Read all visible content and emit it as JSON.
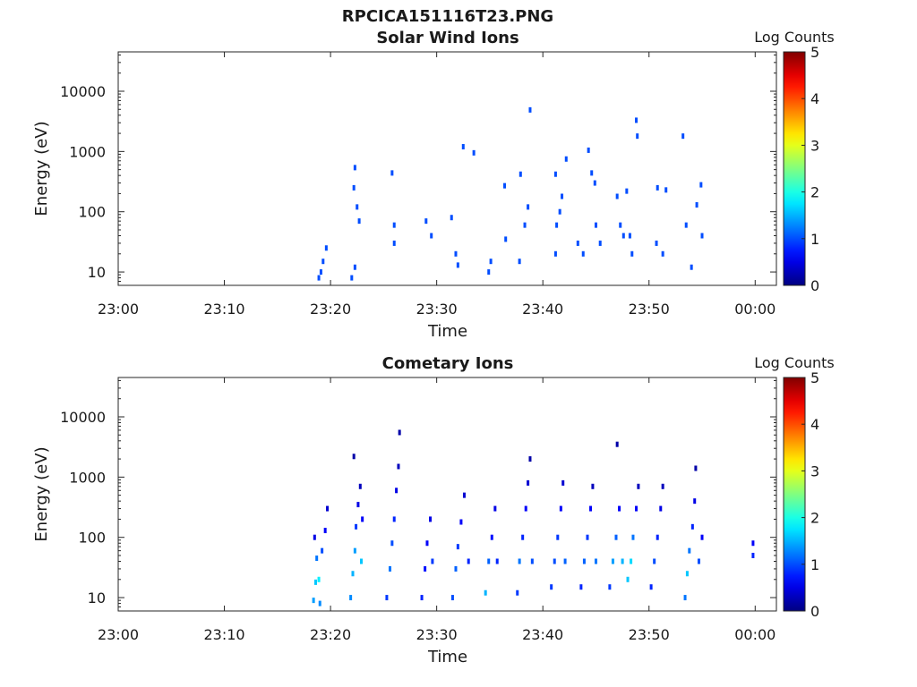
{
  "figure_title": "RPCICA151116T23.PNG",
  "chart_data": [
    {
      "type": "heatmap",
      "title": "Solar Wind Ions",
      "xlabel": "Time",
      "ylabel": "Energy (eV)",
      "x_range": [
        "23:00",
        "00:02"
      ],
      "x_ticks": [
        "23:00",
        "23:10",
        "23:20",
        "23:30",
        "23:40",
        "23:50",
        "00:00"
      ],
      "y_scale": "log",
      "y_range": [
        6,
        45000
      ],
      "y_ticks": [
        "10",
        "100",
        "1000",
        "10000"
      ],
      "colorbar": {
        "label": "Log Counts",
        "min": 0,
        "max": 5,
        "ticks": [
          "0",
          "1",
          "2",
          "3",
          "4",
          "5"
        ],
        "colormap": "jet"
      },
      "grid": false,
      "cells": [
        [
          18.9,
          8,
          1
        ],
        [
          19.1,
          10,
          1
        ],
        [
          19.3,
          15,
          1
        ],
        [
          19.6,
          25,
          1
        ],
        [
          22.0,
          8,
          1
        ],
        [
          22.3,
          12,
          1
        ],
        [
          22.2,
          250,
          1
        ],
        [
          22.3,
          540,
          1
        ],
        [
          22.5,
          120,
          1
        ],
        [
          22.7,
          70,
          1
        ],
        [
          25.8,
          440,
          1
        ],
        [
          26.0,
          60,
          1
        ],
        [
          26.0,
          30,
          1
        ],
        [
          29.0,
          70,
          1
        ],
        [
          29.5,
          40,
          1
        ],
        [
          31.4,
          80,
          1
        ],
        [
          31.8,
          20,
          1
        ],
        [
          32.0,
          13,
          1
        ],
        [
          32.5,
          1200,
          1
        ],
        [
          33.5,
          950,
          1
        ],
        [
          34.9,
          10,
          1
        ],
        [
          35.1,
          15,
          1
        ],
        [
          36.4,
          270,
          1
        ],
        [
          36.5,
          35,
          1
        ],
        [
          37.8,
          15,
          1
        ],
        [
          37.9,
          420,
          1
        ],
        [
          38.3,
          60,
          1
        ],
        [
          38.6,
          120,
          1
        ],
        [
          38.8,
          4900,
          1
        ],
        [
          41.2,
          420,
          1
        ],
        [
          41.3,
          60,
          1
        ],
        [
          41.2,
          20,
          1
        ],
        [
          41.6,
          100,
          1
        ],
        [
          41.8,
          180,
          1
        ],
        [
          42.2,
          750,
          1
        ],
        [
          43.3,
          30,
          1
        ],
        [
          43.8,
          20,
          1
        ],
        [
          44.3,
          1050,
          1
        ],
        [
          44.6,
          440,
          1
        ],
        [
          44.9,
          300,
          1
        ],
        [
          45.0,
          60,
          1
        ],
        [
          45.4,
          30,
          1
        ],
        [
          47.0,
          180,
          1
        ],
        [
          47.3,
          60,
          1
        ],
        [
          47.6,
          40,
          1
        ],
        [
          47.9,
          220,
          1
        ],
        [
          48.2,
          40,
          1
        ],
        [
          48.4,
          20,
          1
        ],
        [
          48.8,
          3300,
          1
        ],
        [
          48.9,
          1800,
          1
        ],
        [
          50.7,
          30,
          1
        ],
        [
          50.8,
          250,
          1
        ],
        [
          51.3,
          20,
          1
        ],
        [
          51.6,
          230,
          1
        ],
        [
          53.2,
          1800,
          1
        ],
        [
          53.5,
          60,
          1
        ],
        [
          54.0,
          12,
          1
        ],
        [
          54.5,
          130,
          1
        ],
        [
          54.9,
          280,
          1
        ],
        [
          55.0,
          40,
          1
        ]
      ]
    },
    {
      "type": "heatmap",
      "title": "Cometary Ions",
      "xlabel": "Time",
      "ylabel": "Energy (eV)",
      "x_range": [
        "23:00",
        "00:02"
      ],
      "x_ticks": [
        "23:00",
        "23:10",
        "23:20",
        "23:30",
        "23:40",
        "23:50",
        "00:00"
      ],
      "y_scale": "log",
      "y_range": [
        6,
        45000
      ],
      "y_ticks": [
        "10",
        "100",
        "1000",
        "10000"
      ],
      "colorbar": {
        "label": "Log Counts",
        "min": 0,
        "max": 5,
        "ticks": [
          "0",
          "1",
          "2",
          "3",
          "4",
          "5"
        ],
        "colormap": "jet"
      },
      "grid": false,
      "cells": [
        [
          18.4,
          9,
          1.4
        ],
        [
          18.6,
          18,
          1.6
        ],
        [
          18.7,
          45,
          1.2
        ],
        [
          18.9,
          20,
          1.8
        ],
        [
          19.0,
          8,
          1.3
        ],
        [
          19.2,
          60,
          1.0
        ],
        [
          19.5,
          130,
          0.6
        ],
        [
          19.7,
          300,
          0.4
        ],
        [
          18.5,
          100,
          0.5
        ],
        [
          21.9,
          10,
          1.3
        ],
        [
          22.1,
          25,
          1.5
        ],
        [
          22.3,
          60,
          1.4
        ],
        [
          22.4,
          150,
          0.9
        ],
        [
          22.6,
          350,
          0.5
        ],
        [
          22.8,
          700,
          0.3
        ],
        [
          22.9,
          40,
          1.6
        ],
        [
          23.0,
          200,
          0.6
        ],
        [
          22.2,
          2200,
          0.2
        ],
        [
          25.3,
          10,
          0.9
        ],
        [
          25.6,
          30,
          1.2
        ],
        [
          25.8,
          80,
          1.0
        ],
        [
          26.0,
          200,
          0.8
        ],
        [
          26.2,
          600,
          0.5
        ],
        [
          26.4,
          1500,
          0.3
        ],
        [
          26.5,
          5500,
          0.2
        ],
        [
          28.6,
          10,
          0.8
        ],
        [
          28.9,
          30,
          0.7
        ],
        [
          29.1,
          80,
          0.6
        ],
        [
          29.4,
          200,
          0.5
        ],
        [
          29.6,
          40,
          0.9
        ],
        [
          31.5,
          10,
          1.0
        ],
        [
          31.8,
          30,
          1.1
        ],
        [
          32.0,
          70,
          0.9
        ],
        [
          32.3,
          180,
          0.6
        ],
        [
          32.6,
          500,
          0.4
        ],
        [
          33.0,
          40,
          0.8
        ],
        [
          34.6,
          12,
          1.5
        ],
        [
          34.9,
          40,
          1.1
        ],
        [
          35.2,
          100,
          0.7
        ],
        [
          35.5,
          300,
          0.5
        ],
        [
          35.7,
          40,
          0.8
        ],
        [
          37.6,
          12,
          0.9
        ],
        [
          37.8,
          40,
          1.2
        ],
        [
          38.1,
          100,
          0.8
        ],
        [
          38.4,
          300,
          0.6
        ],
        [
          38.6,
          800,
          0.4
        ],
        [
          38.8,
          2000,
          0.2
        ],
        [
          39.0,
          40,
          1.0
        ],
        [
          40.8,
          15,
          0.9
        ],
        [
          41.1,
          40,
          1.0
        ],
        [
          41.4,
          100,
          0.9
        ],
        [
          41.7,
          300,
          0.6
        ],
        [
          41.9,
          800,
          0.4
        ],
        [
          42.1,
          40,
          1.1
        ],
        [
          43.6,
          15,
          0.8
        ],
        [
          43.9,
          40,
          1.1
        ],
        [
          44.2,
          100,
          0.9
        ],
        [
          44.5,
          300,
          0.6
        ],
        [
          44.7,
          700,
          0.3
        ],
        [
          45.0,
          40,
          1.2
        ],
        [
          46.3,
          15,
          0.9
        ],
        [
          46.6,
          40,
          1.4
        ],
        [
          46.9,
          100,
          1.1
        ],
        [
          47.2,
          300,
          0.6
        ],
        [
          47.0,
          3500,
          0.2
        ],
        [
          47.5,
          40,
          1.5
        ],
        [
          48.0,
          20,
          1.6
        ],
        [
          48.3,
          40,
          1.7
        ],
        [
          48.5,
          100,
          1.2
        ],
        [
          48.8,
          300,
          0.6
        ],
        [
          49.0,
          700,
          0.3
        ],
        [
          50.2,
          15,
          0.8
        ],
        [
          50.5,
          40,
          1.0
        ],
        [
          50.8,
          100,
          0.8
        ],
        [
          51.1,
          300,
          0.5
        ],
        [
          51.3,
          700,
          0.3
        ],
        [
          53.4,
          10,
          1.2
        ],
        [
          53.6,
          25,
          1.6
        ],
        [
          53.8,
          60,
          1.2
        ],
        [
          54.1,
          150,
          0.8
        ],
        [
          54.3,
          400,
          0.5
        ],
        [
          54.4,
          1400,
          0.2
        ],
        [
          54.7,
          40,
          1.0
        ],
        [
          55.0,
          100,
          0.6
        ],
        [
          59.8,
          50,
          0.8
        ],
        [
          59.8,
          80,
          0.6
        ]
      ]
    }
  ]
}
